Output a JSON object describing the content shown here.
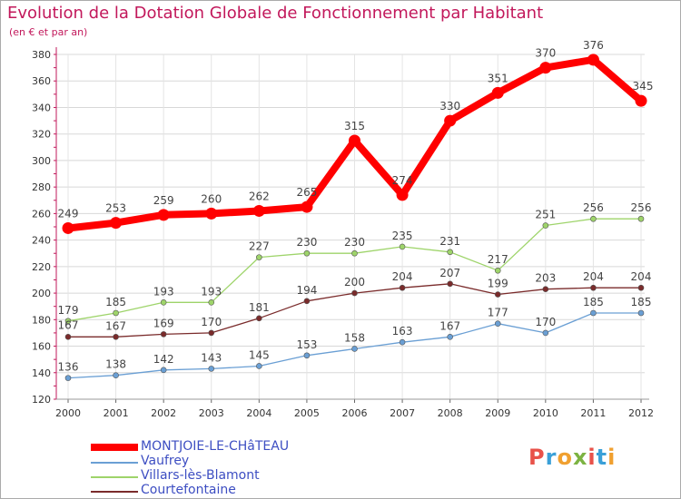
{
  "title": "Evolution de la Dotation Globale de Fonctionnement par Habitant",
  "subtitle": "(en € et par an)",
  "logo": {
    "letters": [
      "P",
      "r",
      "o",
      "x",
      "i",
      "t",
      "i"
    ],
    "colors": [
      "#e8524a",
      "#3aa0d8",
      "#f0a030",
      "#7cb342",
      "#e8524a",
      "#3aa0d8",
      "#f0a030"
    ]
  },
  "chart_data": {
    "type": "line",
    "title": "Evolution de la Dotation Globale de Fonctionnement par Habitant",
    "ylabel": "(en € et par an)",
    "x": [
      "2000",
      "2001",
      "2002",
      "2003",
      "2004",
      "2005",
      "2006",
      "2007",
      "2008",
      "2009",
      "2010",
      "2011",
      "2012"
    ],
    "ylim": [
      120,
      380
    ],
    "yticks": [
      120,
      140,
      160,
      180,
      200,
      220,
      240,
      260,
      280,
      300,
      320,
      340,
      360,
      380
    ],
    "grid": true,
    "series": [
      {
        "name": "MONTJOIE-LE-CHâTEAU",
        "color": "#ff0000",
        "values": [
          249,
          253,
          259,
          260,
          262,
          265,
          315,
          274,
          330,
          351,
          370,
          376,
          345
        ],
        "labels": [
          "249",
          "253",
          "259",
          "260",
          "262",
          "265",
          "315",
          "274",
          "330",
          "351",
          "370",
          "376",
          "345"
        ],
        "width": 8
      },
      {
        "name": "Vaufrey",
        "color": "#6a9fd4",
        "values": [
          136,
          138,
          142,
          143,
          145,
          153,
          158,
          163,
          167,
          177,
          170,
          185,
          185
        ],
        "labels": [
          "136",
          "138",
          "142",
          "143",
          "145",
          "153",
          "158",
          "163",
          "167",
          "177",
          "170",
          "185",
          "185"
        ],
        "width": 1.3
      },
      {
        "name": "Villars-lès-Blamont",
        "color": "#9ed46a",
        "values": [
          179,
          185,
          193,
          193,
          227,
          230,
          230,
          235,
          231,
          217,
          251,
          256,
          256
        ],
        "labels": [
          "179",
          "185",
          "193",
          "193",
          "227",
          "230",
          "230",
          "235",
          "231",
          "217",
          "251",
          "256",
          "256"
        ],
        "width": 1.3
      },
      {
        "name": "Courtefontaine",
        "color": "#7a2b2b",
        "values": [
          167,
          167,
          169,
          170,
          181,
          194,
          200,
          204,
          207,
          199,
          203,
          204,
          204
        ],
        "labels": [
          "167",
          "167",
          "169",
          "170",
          "181",
          "194",
          "200",
          "204",
          "207",
          "199",
          "203",
          "204",
          "204"
        ],
        "width": 1.3
      }
    ]
  }
}
